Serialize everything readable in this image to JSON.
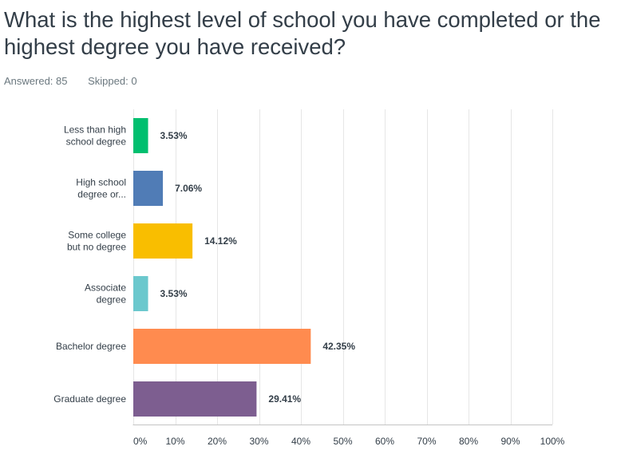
{
  "header": {
    "title": "What is the highest level of school you have completed or the highest degree you have received?",
    "answered": "Answered: 85",
    "skipped": "Skipped: 0"
  },
  "chart_data": {
    "type": "bar",
    "orientation": "horizontal",
    "categories": [
      [
        "Less than high",
        "school degree"
      ],
      [
        "High school",
        "degree or..."
      ],
      [
        "Some college",
        "but no degree"
      ],
      [
        "Associate",
        "degree"
      ],
      [
        "Bachelor degree"
      ],
      [
        "Graduate degree"
      ]
    ],
    "values": [
      3.53,
      7.06,
      14.12,
      3.53,
      42.35,
      29.41
    ],
    "value_labels": [
      "3.53%",
      "7.06%",
      "14.12%",
      "3.53%",
      "42.35%",
      "29.41%"
    ],
    "colors": [
      "#00bf6f",
      "#507cb6",
      "#f9be00",
      "#6bc8cd",
      "#ff8b4f",
      "#7d5e90"
    ],
    "x_ticks": [
      "0%",
      "10%",
      "20%",
      "30%",
      "40%",
      "50%",
      "60%",
      "70%",
      "80%",
      "90%",
      "100%"
    ],
    "xlim": [
      0,
      100
    ],
    "grid": true,
    "grid_color": "#e6e6e6"
  }
}
